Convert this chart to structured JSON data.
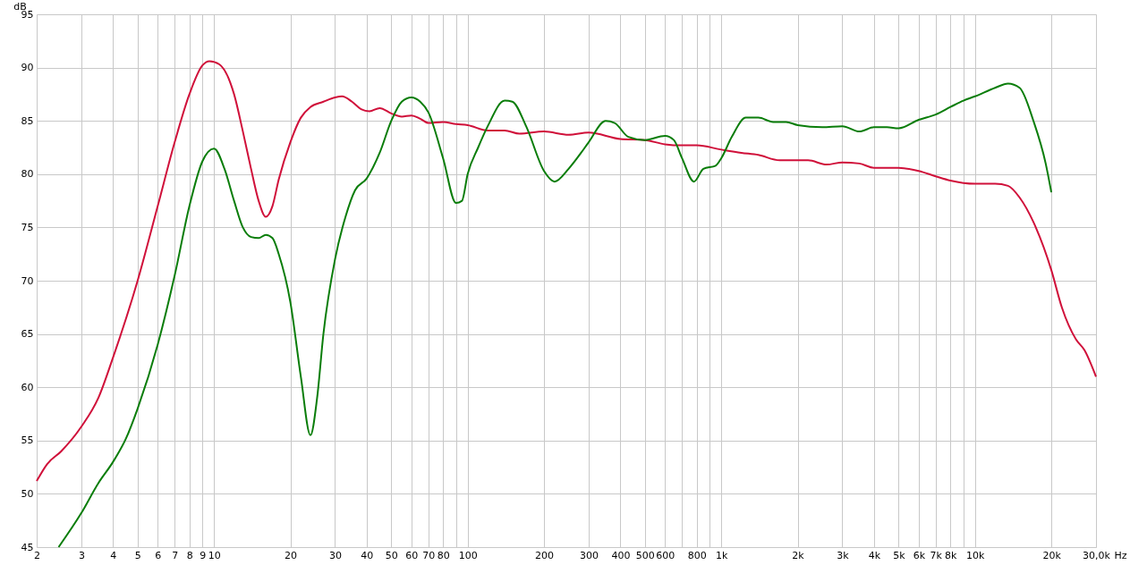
{
  "chart_data": {
    "type": "line",
    "ylabel": "dB",
    "xlabel": "Hz",
    "log": "x",
    "grid": true,
    "line_style": "solid",
    "marker": "none",
    "xlim": [
      2,
      30000
    ],
    "ylim": [
      45,
      95
    ],
    "xticks": [
      2,
      3,
      4,
      5,
      6,
      7,
      8,
      9,
      10,
      20,
      30,
      40,
      50,
      60,
      70,
      80,
      {
        "value": 90,
        "label": null
      },
      100,
      200,
      300,
      400,
      500,
      600,
      {
        "value": 700,
        "label": null
      },
      800,
      {
        "value": 900,
        "label": null
      },
      {
        "value": 1000,
        "label": "1k"
      },
      {
        "value": 2000,
        "label": "2k"
      },
      {
        "value": 3000,
        "label": "3k"
      },
      {
        "value": 4000,
        "label": "4k"
      },
      {
        "value": 5000,
        "label": "5k"
      },
      {
        "value": 6000,
        "label": "6k"
      },
      {
        "value": 7000,
        "label": "7k"
      },
      {
        "value": 8000,
        "label": "8k"
      },
      {
        "value": 9000,
        "label": null
      },
      {
        "value": 10000,
        "label": "10k"
      },
      {
        "value": 20000,
        "label": "20k"
      },
      {
        "value": 30000,
        "label": "30,0k"
      }
    ],
    "yticks": [
      45,
      50,
      55,
      60,
      65,
      70,
      75,
      80,
      85,
      90,
      95
    ],
    "series": [
      {
        "color": "#d0103a",
        "x": [
          2,
          2.2,
          2.5,
          3,
          3.5,
          4,
          5,
          6,
          7,
          8,
          9,
          9.6,
          10.5,
          12,
          13,
          14,
          15,
          16,
          17,
          18,
          20,
          22,
          24,
          27,
          30,
          32,
          35,
          38,
          41,
          45,
          50,
          55,
          60,
          65,
          70,
          80,
          90,
          100,
          120,
          140,
          160,
          200,
          250,
          300,
          400,
          500,
          600,
          700,
          800,
          1000,
          1200,
          1400,
          1700,
          2000,
          2200,
          2600,
          3000,
          3500,
          4000,
          5000,
          6000,
          7000,
          8000,
          10000,
          12000,
          13500,
          15000,
          17000,
          20000,
          22000,
          25000,
          27000,
          30000
        ],
        "values": [
          51.2,
          52.8,
          54,
          56.3,
          59,
          62.8,
          70,
          77,
          83,
          87.5,
          90.2,
          90.6,
          90.3,
          87.5,
          84,
          80.5,
          77.5,
          76,
          77,
          79.5,
          83,
          85.3,
          86.3,
          86.8,
          87.2,
          87.3,
          86.8,
          86.1,
          85.9,
          86.2,
          85.7,
          85.4,
          85.5,
          85.2,
          84.8,
          84.9,
          84.7,
          84.6,
          84.1,
          84.1,
          83.8,
          84,
          83.7,
          83.9,
          83.3,
          83.2,
          82.8,
          82.7,
          82.7,
          82.3,
          82,
          81.8,
          81.3,
          81.3,
          81.3,
          80.9,
          81.1,
          81,
          80.6,
          80.6,
          80.3,
          79.8,
          79.4,
          79.1,
          79.1,
          78.9,
          77.8,
          75.5,
          71,
          67.5,
          64.5,
          63.5,
          61
        ]
      },
      {
        "color": "#0a7d0a",
        "x": [
          2.44,
          3,
          3.5,
          4,
          4.5,
          5,
          6,
          7,
          8,
          9,
          10,
          11,
          12,
          13,
          14,
          15,
          16,
          17,
          18,
          20,
          22,
          24,
          25.5,
          27,
          30,
          33,
          36,
          40,
          45,
          50,
          55,
          60,
          65,
          70,
          80,
          90,
          95,
          100,
          110,
          120,
          140,
          150,
          170,
          200,
          220,
          250,
          280,
          300,
          350,
          380,
          430,
          500,
          600,
          650,
          700,
          780,
          850,
          950,
          1000,
          1100,
          1250,
          1400,
          1600,
          1800,
          2000,
          2500,
          3000,
          3500,
          4000,
          4500,
          5000,
          6000,
          7000,
          8000,
          9000,
          10000,
          12000,
          13500,
          15000,
          17000,
          19000,
          20000
        ],
        "values": [
          45,
          48.2,
          51,
          53,
          55.2,
          58,
          64,
          70.5,
          77,
          81.2,
          82.4,
          80.5,
          77.5,
          75,
          74.1,
          74,
          74.3,
          74,
          72.5,
          68,
          61,
          55.5,
          59,
          65,
          72,
          76,
          78.5,
          79.6,
          82,
          85,
          86.8,
          87.2,
          86.8,
          85.8,
          81.5,
          77.3,
          77.5,
          80,
          82.5,
          84.5,
          86.9,
          86.8,
          84.5,
          80.3,
          79.3,
          80.5,
          82,
          83,
          85,
          84.8,
          83.5,
          83.2,
          83.6,
          83.2,
          81.5,
          79.3,
          80.5,
          80.8,
          81.5,
          83.5,
          85.3,
          85.3,
          84.9,
          84.9,
          84.6,
          84.4,
          84.5,
          84,
          84.4,
          84.4,
          84.3,
          85.1,
          85.6,
          86.3,
          86.9,
          87.3,
          88.1,
          88.5,
          88.1,
          85,
          81,
          78.3
        ]
      }
    ]
  }
}
